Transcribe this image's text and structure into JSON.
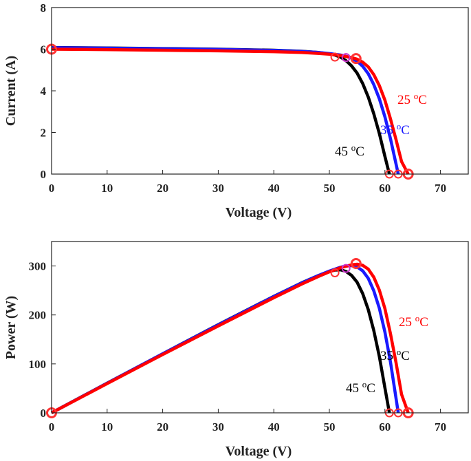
{
  "chart_data": [
    {
      "type": "line",
      "title": "",
      "xlabel": "Voltage (V)",
      "ylabel": "Current (A)",
      "xlim": [
        0,
        75
      ],
      "ylim": [
        0,
        8
      ],
      "xticks": [
        "0",
        "10",
        "20",
        "30",
        "40",
        "50",
        "60",
        "70"
      ],
      "yticks": [
        "0",
        "2",
        "4",
        "6",
        "8"
      ],
      "series": [
        {
          "name": "45 °C",
          "color": "#000000",
          "label": {
            "text": "45 ",
            "unit": "C",
            "sup": "o"
          },
          "x": [
            0,
            10,
            20,
            30,
            40,
            45,
            48,
            50,
            51,
            52,
            53,
            54,
            55,
            56,
            57,
            58,
            59,
            60,
            60.8
          ],
          "y": [
            6.08,
            6.06,
            6.03,
            6.0,
            5.95,
            5.9,
            5.84,
            5.78,
            5.72,
            5.62,
            5.45,
            5.2,
            4.85,
            4.35,
            3.7,
            2.9,
            1.95,
            0.85,
            0
          ],
          "markers": [
            {
              "x": 51,
              "y": 5.62,
              "color": "#ff3333"
            },
            {
              "x": 60.8,
              "y": 0,
              "color": "#ff3333"
            }
          ]
        },
        {
          "name": "35 °C",
          "color": "#1a1aff",
          "label": {
            "text": "35 ",
            "unit": "C",
            "sup": "o"
          },
          "x": [
            0,
            10,
            20,
            30,
            40,
            45,
            48,
            50,
            52,
            53,
            54,
            55,
            56,
            57,
            58,
            59,
            60,
            61,
            62.4
          ],
          "y": [
            6.07,
            6.05,
            6.02,
            5.99,
            5.94,
            5.89,
            5.84,
            5.79,
            5.72,
            5.66,
            5.57,
            5.42,
            5.18,
            4.82,
            4.3,
            3.62,
            2.75,
            1.7,
            0
          ],
          "markers": [
            {
              "x": 53,
              "y": 5.6,
              "color": "#cc33cc"
            },
            {
              "x": 62.4,
              "y": 0,
              "color": "#ff3333"
            }
          ]
        },
        {
          "name": "25 °C",
          "color": "#ff0000",
          "label": {
            "text": "25 ",
            "unit": "C",
            "sup": "o"
          },
          "x": [
            0,
            10,
            20,
            30,
            40,
            45,
            48,
            50,
            52,
            54,
            55,
            56,
            57,
            58,
            59,
            60,
            61,
            62,
            63,
            64.2
          ],
          "y": [
            6.0,
            5.98,
            5.95,
            5.92,
            5.88,
            5.84,
            5.8,
            5.76,
            5.7,
            5.6,
            5.52,
            5.38,
            5.15,
            4.78,
            4.25,
            3.55,
            2.65,
            1.65,
            0.6,
            0
          ],
          "markers": [
            {
              "x": 0,
              "y": 6.0,
              "color": "#ff3333"
            },
            {
              "x": 54.8,
              "y": 5.55,
              "color": "#ff3333"
            },
            {
              "x": 64.2,
              "y": 0,
              "color": "#ff3333"
            }
          ]
        }
      ]
    },
    {
      "type": "line",
      "title": "",
      "xlabel": "Voltage (V)",
      "ylabel": "Power (W)",
      "xlim": [
        0,
        75
      ],
      "ylim": [
        0,
        350
      ],
      "xticks": [
        "0",
        "10",
        "20",
        "30",
        "40",
        "50",
        "60",
        "70"
      ],
      "yticks": [
        "0",
        "100",
        "200",
        "300"
      ],
      "series": [
        {
          "name": "45 °C",
          "color": "#000000",
          "label": {
            "text": "45 ",
            "unit": "C",
            "sup": "o"
          },
          "x": [
            0,
            10,
            20,
            30,
            40,
            45,
            48,
            50,
            51,
            52,
            53,
            54,
            55,
            56,
            57,
            58,
            59,
            60,
            60.8
          ],
          "y": [
            0,
            60.6,
            120.6,
            180,
            238,
            265.5,
            280.3,
            289,
            291.7,
            292.2,
            288.9,
            280.8,
            266.8,
            243.6,
            210.9,
            168.2,
            115.1,
            51,
            0
          ],
          "markers": [
            {
              "x": 51,
              "y": 286,
              "color": "#ff3333"
            },
            {
              "x": 60.8,
              "y": 0,
              "color": "#ff3333"
            }
          ]
        },
        {
          "name": "35 °C",
          "color": "#1a1aff",
          "label": {
            "text": "35 ",
            "unit": "C",
            "sup": "o"
          },
          "x": [
            0,
            10,
            20,
            30,
            40,
            45,
            48,
            50,
            52,
            53,
            54,
            55,
            56,
            57,
            58,
            59,
            60,
            61,
            62.4
          ],
          "y": [
            0,
            60.5,
            120.4,
            179.7,
            237.6,
            265.1,
            280.3,
            289.5,
            297.4,
            300,
            300.8,
            298.1,
            290.1,
            274.7,
            249.4,
            213.6,
            165,
            103.7,
            0
          ],
          "markers": [
            {
              "x": 53,
              "y": 295,
              "color": "#cc33cc"
            },
            {
              "x": 62.4,
              "y": 0,
              "color": "#ff3333"
            }
          ]
        },
        {
          "name": "25 °C",
          "color": "#ff0000",
          "label": {
            "text": "25 ",
            "unit": "C",
            "sup": "o"
          },
          "x": [
            0,
            10,
            20,
            30,
            40,
            45,
            48,
            50,
            52,
            54,
            55,
            56,
            57,
            58,
            59,
            60,
            61,
            62,
            63,
            64.2
          ],
          "y": [
            0,
            59.8,
            119,
            177.6,
            235.2,
            262.8,
            278.4,
            288,
            296.4,
            302.4,
            303.6,
            301.3,
            293.6,
            277.2,
            250.8,
            213,
            161.7,
            102.3,
            37.8,
            0
          ],
          "markers": [
            {
              "x": 0,
              "y": 0,
              "color": "#ff3333"
            },
            {
              "x": 54.8,
              "y": 305,
              "color": "#ff3333"
            },
            {
              "x": 64.2,
              "y": 0,
              "color": "#ff3333"
            }
          ]
        }
      ]
    }
  ]
}
